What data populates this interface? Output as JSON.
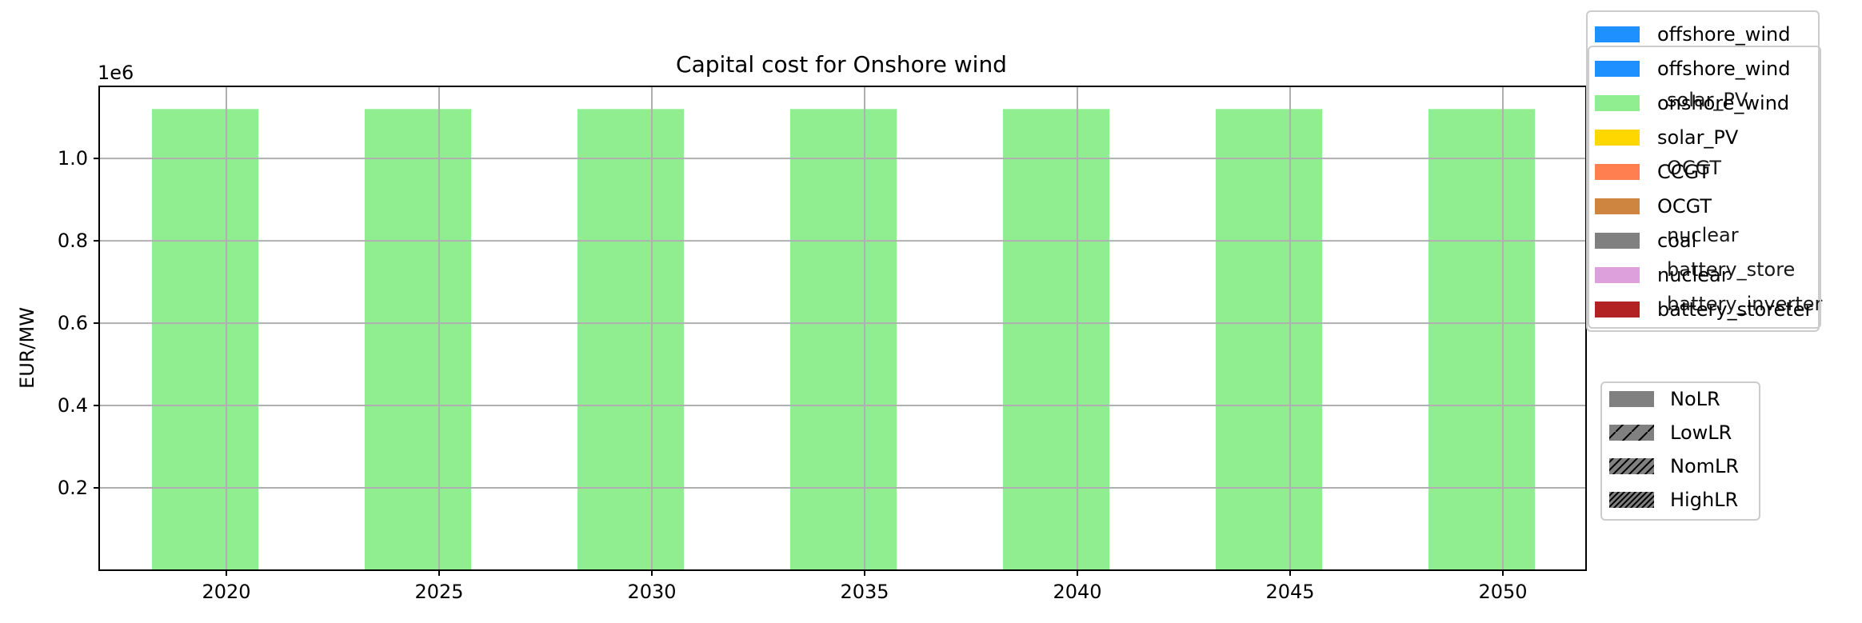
{
  "chart_data": {
    "type": "bar",
    "title": "Capital cost for Onshore wind",
    "xlabel": "",
    "ylabel": "EUR/MW",
    "y_offset_label": "1e6",
    "categories": [
      "2020",
      "2025",
      "2030",
      "2035",
      "2040",
      "2045",
      "2050"
    ],
    "y_tick_values": [
      0.2,
      0.4,
      0.6,
      0.8,
      1.0
    ],
    "y_tick_labels": [
      "0.2",
      "0.4",
      "0.6",
      "0.8",
      "1.0"
    ],
    "ylim": [
      0,
      1.175
    ],
    "grid": true,
    "series": [
      {
        "name": "onshore_wind",
        "color": "#90EE90",
        "values": [
          1.12,
          1.12,
          1.12,
          1.12,
          1.12,
          1.12,
          1.12
        ]
      }
    ],
    "legend_overlap_labels": [
      "solar_PV",
      "OCGT",
      "nuclear",
      "battery_store",
      "battery_inverter"
    ],
    "legend_technologies": [
      {
        "label": "offshore_wind",
        "color": "#1E90FF"
      },
      {
        "label": "offshore_wind",
        "color": "#1E90FF"
      },
      {
        "label": "onshore_wind",
        "color": "#90EE90"
      },
      {
        "label": "solar_PV",
        "color": "#FFD700"
      },
      {
        "label": "CCGT",
        "color": "#FF7F50"
      },
      {
        "label": "OCGT",
        "color": "#CD853F"
      },
      {
        "label": "coal",
        "color": "#808080"
      },
      {
        "label": "nuclear",
        "color": "#DDA0DD"
      },
      {
        "label": "battery_storeter",
        "color": "#B22222"
      }
    ],
    "legend_learning_rates": [
      {
        "label": "NoLR",
        "hatch": "none"
      },
      {
        "label": "LowLR",
        "hatch": "single"
      },
      {
        "label": "NomLR",
        "hatch": "double"
      },
      {
        "label": "HighLR",
        "hatch": "triple"
      }
    ],
    "legend_placement": "outside-right"
  }
}
